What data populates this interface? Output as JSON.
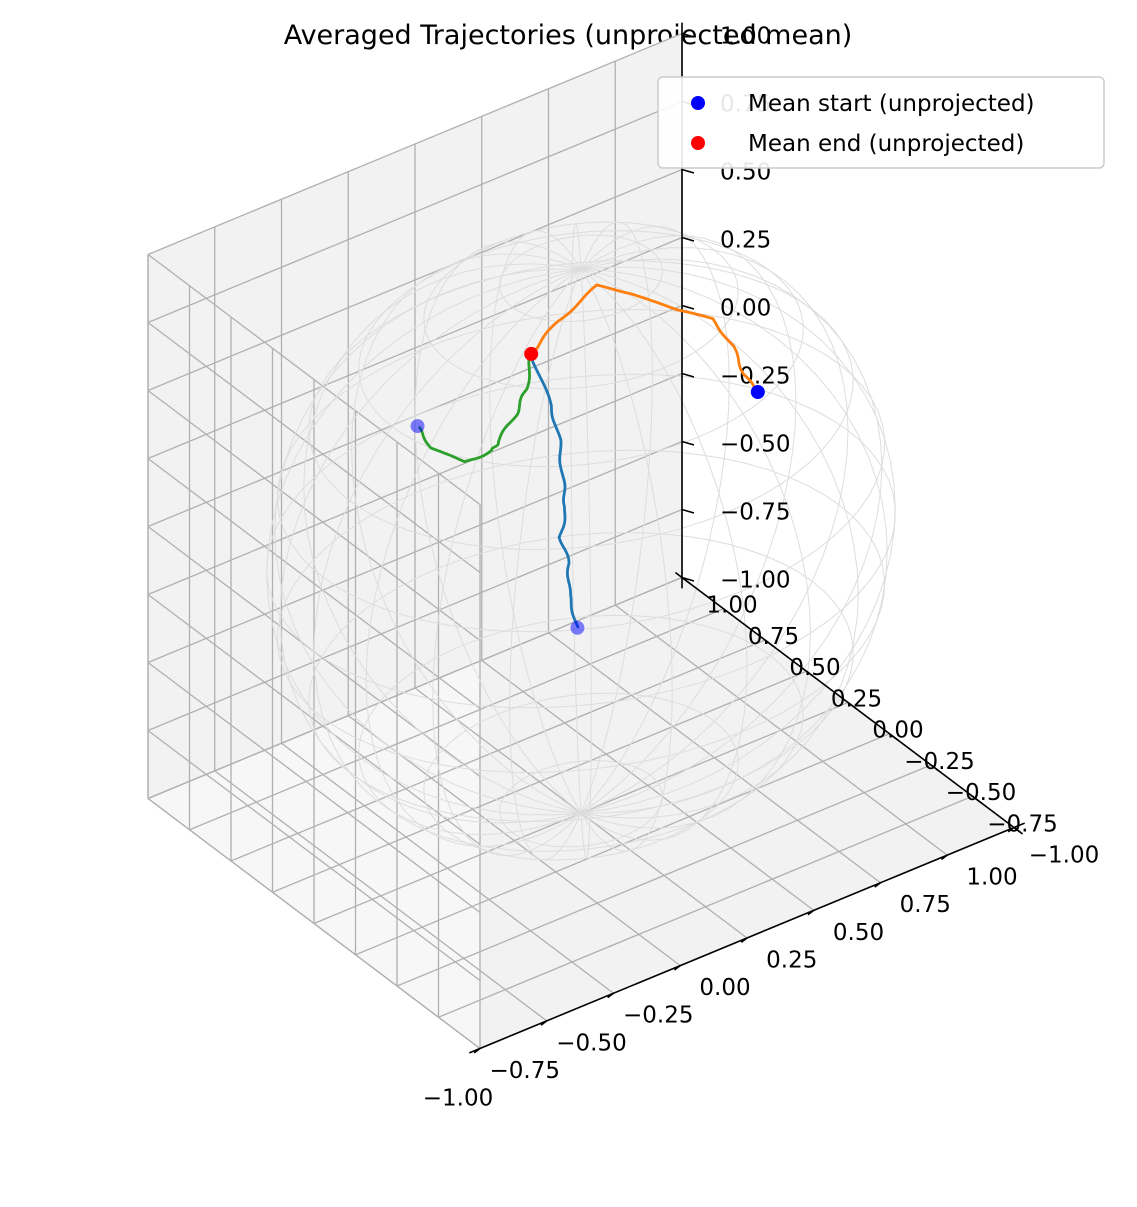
{
  "chart_data": {
    "type": "line3d",
    "title": "Averaged Trajectories (unprojected mean)",
    "xlabel": "",
    "ylabel": "",
    "zlabel": "",
    "xlim": [
      -1.0,
      1.0
    ],
    "ylim": [
      -1.0,
      1.0
    ],
    "zlim": [
      -1.0,
      1.0
    ],
    "x_ticks": [
      "−1.00",
      "−0.75",
      "−0.50",
      "−0.25",
      "0.00",
      "0.25",
      "0.50",
      "0.75",
      "1.00"
    ],
    "y_ticks": [
      "−1.00",
      "−0.75",
      "−0.50",
      "−0.25",
      "0.00",
      "0.25",
      "0.50",
      "0.75",
      "1.00"
    ],
    "z_ticks": [
      "−1.00",
      "−0.75",
      "−0.50",
      "−0.25",
      "0.00",
      "0.25",
      "0.50",
      "0.75",
      "1.00"
    ],
    "grid": true,
    "legend_position": "upper right",
    "legend": [
      {
        "label": "Mean start (unprojected)",
        "color": "#0000ff"
      },
      {
        "label": "Mean end (unprojected)",
        "color": "#ff0000"
      }
    ],
    "background_object": "unit sphere wireframe",
    "mean_end_point": {
      "x": 0.0,
      "y": 0.3,
      "z": 0.55
    },
    "series": [
      {
        "color": "#1f77b4",
        "start_alpha": 0.5,
        "points": [
          [
            -0.2,
            -0.3,
            -0.1
          ],
          [
            -0.2,
            -0.25,
            0.0
          ],
          [
            -0.17,
            -0.2,
            0.08
          ],
          [
            -0.17,
            -0.15,
            0.15
          ],
          [
            -0.12,
            -0.1,
            0.22
          ],
          [
            -0.1,
            -0.05,
            0.3
          ],
          [
            -0.05,
            0.05,
            0.37
          ],
          [
            -0.02,
            0.15,
            0.44
          ],
          [
            0.0,
            0.3,
            0.55
          ]
        ]
      },
      {
        "color": "#ff7f0e",
        "start_alpha": 1.0,
        "points": [
          [
            0.6,
            -0.1,
            0.35
          ],
          [
            0.58,
            -0.05,
            0.4
          ],
          [
            0.6,
            0.05,
            0.45
          ],
          [
            0.55,
            0.1,
            0.55
          ],
          [
            0.45,
            0.15,
            0.6
          ],
          [
            0.35,
            0.25,
            0.65
          ],
          [
            0.25,
            0.3,
            0.7
          ],
          [
            0.1,
            0.3,
            0.63
          ],
          [
            0.0,
            0.3,
            0.55
          ]
        ]
      },
      {
        "color": "#2ca02c",
        "start_alpha": 0.5,
        "points": [
          [
            -0.55,
            0.1,
            0.6
          ],
          [
            -0.5,
            0.1,
            0.5
          ],
          [
            -0.4,
            0.05,
            0.43
          ],
          [
            -0.3,
            0.05,
            0.43
          ],
          [
            -0.25,
            0.1,
            0.42
          ],
          [
            -0.15,
            0.15,
            0.46
          ],
          [
            -0.08,
            0.2,
            0.5
          ],
          [
            0.0,
            0.3,
            0.55
          ]
        ]
      }
    ]
  }
}
